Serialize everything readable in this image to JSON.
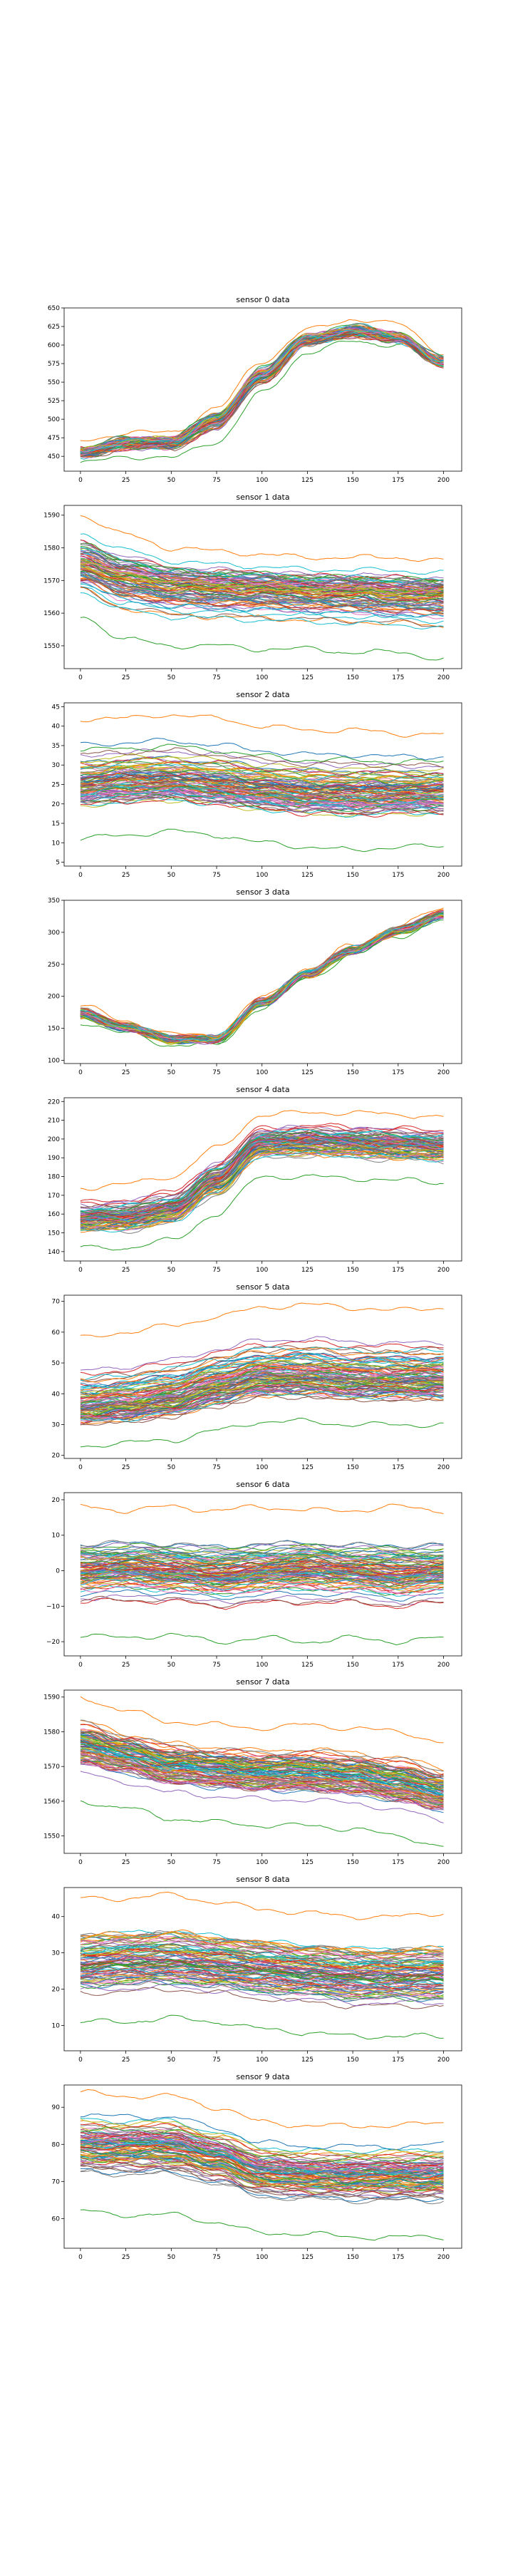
{
  "page": {
    "background": "#ffffff"
  },
  "palette": [
    "#1f77b4",
    "#ff7f0e",
    "#2ca02c",
    "#d62728",
    "#9467bd",
    "#8c564b",
    "#e377c2",
    "#7f7f7f",
    "#bcbd22",
    "#17becf"
  ],
  "chart_data": [
    {
      "type": "line",
      "title": "sensor 0 data",
      "x_ticks": [
        0,
        25,
        50,
        75,
        100,
        125,
        150,
        175,
        200
      ],
      "y_ticks": [
        450,
        475,
        500,
        525,
        550,
        575,
        600,
        625,
        650
      ],
      "xlim": [
        -9,
        210
      ],
      "ylim": [
        430,
        650
      ],
      "n_series": 100,
      "x": [
        0,
        25,
        50,
        75,
        100,
        125,
        150,
        175,
        200
      ],
      "representative_series": [
        {
          "values": [
            455,
            468,
            470,
            500,
            560,
            608,
            618,
            608,
            575
          ]
        },
        {
          "values": [
            470,
            482,
            482,
            515,
            578,
            620,
            635,
            628,
            590
          ]
        },
        {
          "values": [
            440,
            450,
            448,
            470,
            535,
            590,
            605,
            600,
            570
          ]
        }
      ]
    },
    {
      "type": "line",
      "title": "sensor 1 data",
      "x_ticks": [
        0,
        25,
        50,
        75,
        100,
        125,
        150,
        175,
        200
      ],
      "y_ticks": [
        1550,
        1560,
        1570,
        1580,
        1590
      ],
      "xlim": [
        -9,
        210
      ],
      "ylim": [
        1543,
        1593
      ],
      "n_series": 100,
      "x": [
        0,
        25,
        50,
        75,
        100,
        125,
        150,
        175,
        200
      ],
      "representative_series": [
        {
          "values": [
            1575,
            1571,
            1569,
            1568,
            1568,
            1567,
            1567,
            1566,
            1566
          ]
        },
        {
          "values": [
            1590,
            1584,
            1580,
            1579,
            1578,
            1577,
            1577,
            1577,
            1576
          ]
        },
        {
          "values": [
            1559,
            1552,
            1550,
            1550,
            1549,
            1549,
            1548,
            1548,
            1546
          ]
        }
      ]
    },
    {
      "type": "line",
      "title": "sensor 2 data",
      "x_ticks": [
        0,
        25,
        50,
        75,
        100,
        125,
        150,
        175,
        200
      ],
      "y_ticks": [
        5,
        10,
        15,
        20,
        25,
        30,
        35,
        40,
        45
      ],
      "xlim": [
        -9,
        210
      ],
      "ylim": [
        4,
        46
      ],
      "n_series": 100,
      "x": [
        0,
        25,
        50,
        75,
        100,
        125,
        150,
        175,
        200
      ],
      "representative_series": [
        {
          "values": [
            26,
            27,
            27,
            26,
            25,
            24,
            24,
            24,
            24
          ]
        },
        {
          "values": [
            42,
            42,
            43,
            42,
            40,
            39,
            39,
            38,
            38
          ]
        },
        {
          "values": [
            11,
            12,
            13,
            12,
            10,
            9,
            8,
            9,
            9
          ]
        }
      ]
    },
    {
      "type": "line",
      "title": "sensor 3 data",
      "x_ticks": [
        0,
        25,
        50,
        75,
        100,
        125,
        150,
        175,
        200
      ],
      "y_ticks": [
        100,
        150,
        200,
        250,
        300,
        350
      ],
      "xlim": [
        -9,
        210
      ],
      "ylim": [
        95,
        350
      ],
      "n_series": 100,
      "x": [
        0,
        25,
        50,
        75,
        100,
        125,
        150,
        175,
        200
      ],
      "representative_series": [
        {
          "values": [
            172,
            152,
            133,
            133,
            190,
            235,
            272,
            302,
            328
          ]
        },
        {
          "values": [
            185,
            162,
            140,
            140,
            198,
            242,
            280,
            310,
            338
          ]
        },
        {
          "values": [
            160,
            142,
            124,
            125,
            182,
            228,
            264,
            294,
            318
          ]
        }
      ]
    },
    {
      "type": "line",
      "title": "sensor 4 data",
      "x_ticks": [
        0,
        25,
        50,
        75,
        100,
        125,
        150,
        175,
        200
      ],
      "y_ticks": [
        140,
        150,
        160,
        170,
        180,
        190,
        200,
        210,
        220
      ],
      "xlim": [
        -9,
        210
      ],
      "ylim": [
        135,
        222
      ],
      "n_series": 100,
      "x": [
        0,
        25,
        50,
        75,
        100,
        125,
        150,
        175,
        200
      ],
      "representative_series": [
        {
          "values": [
            157,
            158,
            162,
            178,
            198,
            199,
            198,
            197,
            196
          ]
        },
        {
          "values": [
            174,
            176,
            180,
            195,
            213,
            214,
            214,
            213,
            212
          ]
        },
        {
          "values": [
            142,
            142,
            146,
            160,
            180,
            180,
            179,
            178,
            177
          ]
        }
      ]
    },
    {
      "type": "line",
      "title": "sensor 5 data",
      "x_ticks": [
        0,
        25,
        50,
        75,
        100,
        125,
        150,
        175,
        200
      ],
      "y_ticks": [
        20,
        30,
        40,
        50,
        60,
        70
      ],
      "xlim": [
        -9,
        210
      ],
      "ylim": [
        19,
        72
      ],
      "n_series": 100,
      "x": [
        0,
        25,
        50,
        75,
        100,
        125,
        150,
        175,
        200
      ],
      "representative_series": [
        {
          "values": [
            36,
            37,
            39,
            43,
            46,
            46,
            45,
            45,
            45
          ]
        },
        {
          "values": [
            58,
            60,
            62,
            65,
            68,
            69,
            68,
            67,
            68
          ]
        },
        {
          "values": [
            23,
            24,
            25,
            28,
            31,
            31,
            30,
            30,
            30
          ]
        }
      ]
    },
    {
      "type": "line",
      "title": "sensor 6 data",
      "x_ticks": [
        0,
        25,
        50,
        75,
        100,
        125,
        150,
        175,
        200
      ],
      "y_ticks": [
        -20,
        -10,
        0,
        10,
        20
      ],
      "xlim": [
        -9,
        210
      ],
      "ylim": [
        -24,
        22
      ],
      "n_series": 100,
      "x": [
        0,
        25,
        50,
        75,
        100,
        125,
        150,
        175,
        200
      ],
      "representative_series": [
        {
          "values": [
            0,
            1,
            0,
            -1,
            0,
            1,
            0,
            -1,
            0
          ]
        },
        {
          "values": [
            18,
            17,
            18,
            17,
            18,
            17,
            17,
            18,
            17
          ]
        },
        {
          "values": [
            -18,
            -19,
            -18,
            -20,
            -19,
            -20,
            -19,
            -20,
            -19
          ]
        }
      ]
    },
    {
      "type": "line",
      "title": "sensor 7 data",
      "x_ticks": [
        0,
        25,
        50,
        75,
        100,
        125,
        150,
        175,
        200
      ],
      "y_ticks": [
        1550,
        1560,
        1570,
        1580,
        1590
      ],
      "xlim": [
        -9,
        210
      ],
      "ylim": [
        1545,
        1592
      ],
      "n_series": 100,
      "x": [
        0,
        25,
        50,
        75,
        100,
        125,
        150,
        175,
        200
      ],
      "representative_series": [
        {
          "values": [
            1576,
            1573,
            1570,
            1569,
            1568,
            1568,
            1567,
            1565,
            1562
          ]
        },
        {
          "values": [
            1590,
            1586,
            1583,
            1582,
            1581,
            1582,
            1581,
            1580,
            1577
          ]
        },
        {
          "values": [
            1560,
            1558,
            1555,
            1554,
            1553,
            1553,
            1552,
            1550,
            1547
          ]
        }
      ]
    },
    {
      "type": "line",
      "title": "sensor 8 data",
      "x_ticks": [
        0,
        25,
        50,
        75,
        100,
        125,
        150,
        175,
        200
      ],
      "y_ticks": [
        10,
        20,
        30,
        40
      ],
      "xlim": [
        -9,
        210
      ],
      "ylim": [
        3,
        48
      ],
      "n_series": 100,
      "x": [
        0,
        25,
        50,
        75,
        100,
        125,
        150,
        175,
        200
      ],
      "representative_series": [
        {
          "values": [
            27,
            28,
            28,
            27,
            26,
            25,
            24,
            24,
            24
          ]
        },
        {
          "values": [
            45,
            45,
            46,
            44,
            42,
            41,
            40,
            40,
            41
          ]
        },
        {
          "values": [
            11,
            11,
            12,
            11,
            9,
            8,
            7,
            7,
            7
          ]
        }
      ]
    },
    {
      "type": "line",
      "title": "sensor 9 data",
      "x_ticks": [
        0,
        25,
        50,
        75,
        100,
        125,
        150,
        175,
        200
      ],
      "y_ticks": [
        60,
        70,
        80,
        90
      ],
      "xlim": [
        -9,
        210
      ],
      "ylim": [
        52,
        96
      ],
      "n_series": 100,
      "x": [
        0,
        25,
        50,
        75,
        100,
        125,
        150,
        175,
        200
      ],
      "representative_series": [
        {
          "values": [
            80,
            80,
            80,
            77,
            73,
            72,
            72,
            72,
            72
          ]
        },
        {
          "values": [
            94,
            93,
            93,
            90,
            86,
            85,
            85,
            85,
            86
          ]
        },
        {
          "values": [
            62,
            61,
            61,
            59,
            56,
            56,
            55,
            55,
            55
          ]
        }
      ]
    }
  ]
}
